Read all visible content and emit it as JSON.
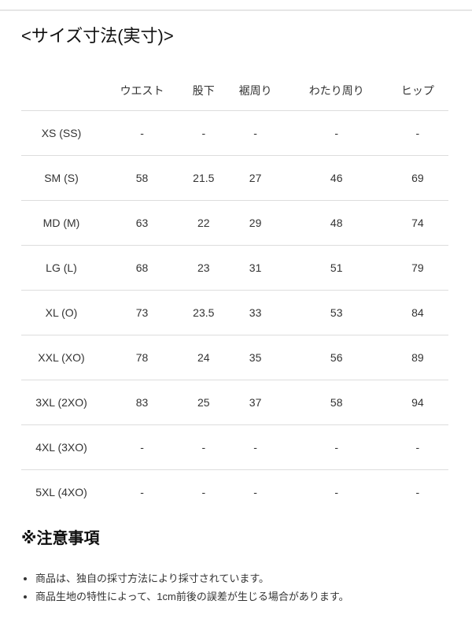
{
  "title": "<サイズ寸法(実寸)>",
  "table": {
    "headers": [
      "",
      "ウエスト",
      "股下",
      "裾周り",
      "わたり周り",
      "ヒップ"
    ],
    "rows": [
      [
        "XS (SS)",
        "-",
        "-",
        "-",
        "-",
        "-"
      ],
      [
        "SM (S)",
        "58",
        "21.5",
        "27",
        "46",
        "69"
      ],
      [
        "MD (M)",
        "63",
        "22",
        "29",
        "48",
        "74"
      ],
      [
        "LG (L)",
        "68",
        "23",
        "31",
        "51",
        "79"
      ],
      [
        "XL (O)",
        "73",
        "23.5",
        "33",
        "53",
        "84"
      ],
      [
        "XXL (XO)",
        "78",
        "24",
        "35",
        "56",
        "89"
      ],
      [
        "3XL (2XO)",
        "83",
        "25",
        "37",
        "58",
        "94"
      ],
      [
        "4XL (3XO)",
        "-",
        "-",
        "-",
        "-",
        "-"
      ],
      [
        "5XL (4XO)",
        "-",
        "-",
        "-",
        "-",
        "-"
      ]
    ]
  },
  "notes": {
    "title": "※注意事項",
    "items": [
      "商品は、独自の採寸方法により採寸されています。",
      "商品生地の特性によって、1cm前後の誤差が生じる場合があります。"
    ]
  }
}
